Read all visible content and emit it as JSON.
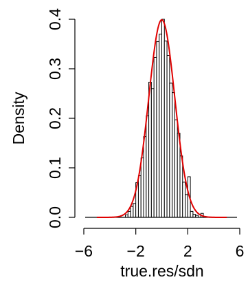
{
  "chart_data": {
    "type": "bar",
    "title": "",
    "xlabel": "true.res/sdn",
    "ylabel": "Density",
    "xlim": [
      -6,
      6
    ],
    "ylim": [
      0,
      0.4
    ],
    "x_ticks": [
      -6,
      -2,
      2,
      6
    ],
    "x_tick_labels": [
      "−6",
      "−2",
      "2",
      "6"
    ],
    "y_ticks": [
      0.0,
      0.1,
      0.2,
      0.3,
      0.4
    ],
    "y_tick_labels": [
      "0.0",
      "0.1",
      "0.2",
      "0.3",
      "0.4"
    ],
    "bin_width": 0.2,
    "bins_start": [
      -2.8,
      -2.6,
      -2.4,
      -2.2,
      -2.0,
      -1.8,
      -1.6,
      -1.4,
      -1.2,
      -1.0,
      -0.8,
      -0.6,
      -0.4,
      -0.2,
      0.0,
      0.2,
      0.4,
      0.6,
      0.8,
      1.0,
      1.2,
      1.4,
      1.6,
      1.8,
      2.0,
      2.2,
      2.4,
      2.6,
      2.8,
      3.0,
      3.2
    ],
    "density": [
      0.005,
      0.012,
      0.022,
      0.028,
      0.07,
      0.084,
      0.12,
      0.163,
      0.205,
      0.273,
      0.26,
      0.323,
      0.355,
      0.37,
      0.4,
      0.356,
      0.327,
      0.271,
      0.252,
      0.197,
      0.17,
      0.124,
      0.071,
      0.046,
      0.082,
      0.012,
      0.006,
      0.004,
      0.0,
      0.008,
      0.002
    ],
    "series": [
      {
        "name": "",
        "kind": "histogram"
      },
      {
        "name": "",
        "kind": "normal-density-curve",
        "mean": 0,
        "sd": 1,
        "x_range": [
          -5,
          5
        ]
      }
    ],
    "colors": {
      "bars_fill": "#ffffff",
      "bars_stroke": "#000000",
      "curve": "#e00000"
    },
    "grid": false,
    "legend": "none"
  }
}
